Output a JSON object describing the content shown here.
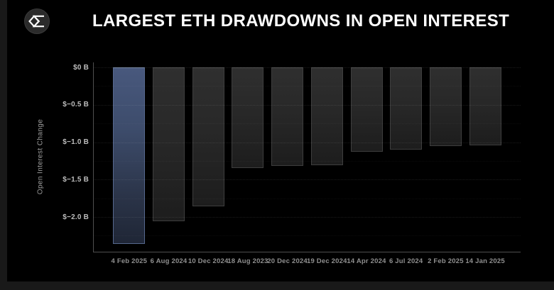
{
  "header": {
    "title": "LARGEST ETH DRAWDOWNS IN OPEN INTEREST",
    "logo_icon": "sigma-diamond-logo"
  },
  "chart_data": {
    "type": "bar",
    "title": "LARGEST ETH DRAWDOWNS IN OPEN INTEREST",
    "xlabel": "",
    "ylabel": "Open Interest Change",
    "unit": "billions USD",
    "categories": [
      "4 Feb 2025",
      "6 Aug 2024",
      "10 Dec 2024",
      "18 Aug 2023",
      "20 Dec 2024",
      "19 Dec 2024",
      "14 Apr 2024",
      "6 Jul 2024",
      "2 Feb 2025",
      "14 Jan 2025"
    ],
    "values": [
      -2.36,
      -2.06,
      -1.86,
      -1.35,
      -1.32,
      -1.31,
      -1.13,
      -1.1,
      -1.05,
      -1.04
    ],
    "highlight_index": 0,
    "ylim": [
      -2.46,
      0
    ],
    "yticks": [
      {
        "value": 0,
        "label": "$0 B"
      },
      {
        "value": -0.5,
        "label": "$−0.5 B"
      },
      {
        "value": -1.0,
        "label": "$−1.0 B"
      },
      {
        "value": -1.5,
        "label": "$−1.5 B"
      },
      {
        "value": -2.0,
        "label": "$−2.0 B"
      }
    ],
    "grid": "horizontal-dotted",
    "legend": "none",
    "colors": {
      "page_background": "#191919",
      "card_background": "#000000",
      "title": "#ffffff",
      "highlight_bar_top": "#48587d",
      "highlight_bar_bottom": "#1f2636",
      "highlight_bar_border": "#56688e",
      "bar_top": "#2f2f2f",
      "bar_bottom": "#1d1d1d",
      "bar_border": "#3e3e3e",
      "axis_line": "#4f4f4f",
      "grid_line": "rgba(255,255,255,0.10)",
      "y_tick_label": "#bdbdbd",
      "x_tick_label": "#8f8f8f",
      "axis_title": "#9e9e9e",
      "logo_circle": "#2b2b2b",
      "logo_glyph": "#ffffff"
    }
  }
}
